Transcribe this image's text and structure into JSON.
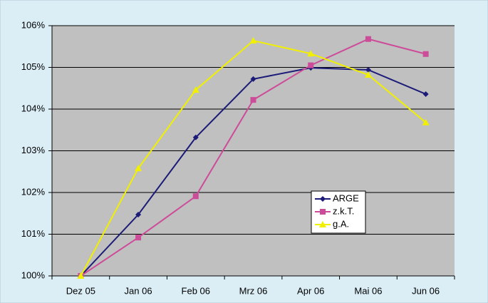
{
  "chart_data": {
    "type": "line",
    "categories": [
      "Dez 05",
      "Jan 06",
      "Feb 06",
      "Mrz 06",
      "Apr 06",
      "Mai 06",
      "Jun 06"
    ],
    "series": [
      {
        "name": "ARGE",
        "color": "#1c1c78",
        "marker": "diamond",
        "values": [
          100,
          101.47,
          103.32,
          104.72,
          104.99,
          104.94,
          104.36
        ]
      },
      {
        "name": "z.k.T.",
        "color": "#cc4c99",
        "marker": "square",
        "values": [
          100,
          100.92,
          101.91,
          104.22,
          105.05,
          105.68,
          105.32
        ]
      },
      {
        "name": "g.A.",
        "color": "#f0f000",
        "marker": "triangle",
        "values": [
          100,
          102.58,
          104.46,
          105.64,
          105.33,
          104.82,
          103.68
        ]
      }
    ],
    "ylim": [
      100,
      106
    ],
    "yticks": [
      {
        "value": 100,
        "label": "100%"
      },
      {
        "value": 101,
        "label": "101%"
      },
      {
        "value": 102,
        "label": "102%"
      },
      {
        "value": 103,
        "label": "103%"
      },
      {
        "value": 104,
        "label": "104%"
      },
      {
        "value": 105,
        "label": "105%"
      },
      {
        "value": 106,
        "label": "106%"
      }
    ],
    "grid": true
  }
}
